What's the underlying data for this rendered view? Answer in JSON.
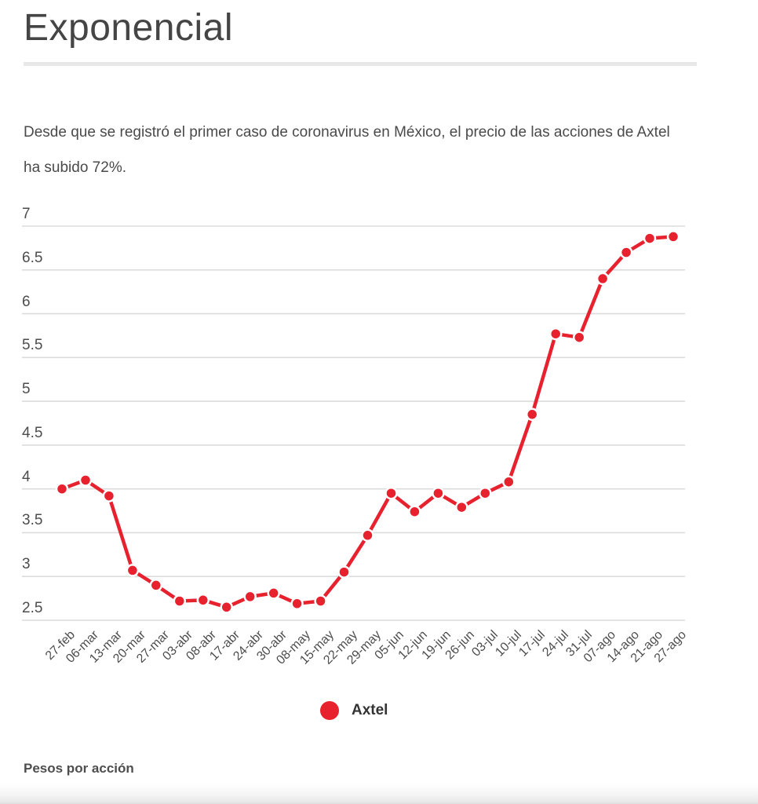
{
  "header": {
    "title": "Exponencial",
    "subtitle_lines": [
      "Desde que se registró el primer caso de coronavirus en México, el precio de las acciones de Axtel",
      "ha subido 72%."
    ]
  },
  "legend": {
    "label": "Axtel"
  },
  "footer": {
    "note": "Pesos por acción"
  },
  "colors": {
    "accent": "#e8212e",
    "grid": "#dcdcdc",
    "title_text": "#454545",
    "body_text": "#4a4a4a",
    "axis_text": "#4d4d4d"
  },
  "chart_data": {
    "type": "line",
    "title": "Exponencial",
    "subtitle": "Desde que se registró el primer caso de coronavirus en México, el precio de las acciones de Axtel ha subido 72%.",
    "ylabel": "Pesos por acción",
    "xlabel": "",
    "ylim": [
      2.5,
      7
    ],
    "ytick_step": 0.5,
    "y_ticks": [
      "7",
      "6.5",
      "6",
      "5.5",
      "5",
      "4.5",
      "4",
      "3.5",
      "3",
      "2.5"
    ],
    "grid": "horizontal",
    "legend_position": "bottom",
    "marker": "circle-with-white-halo",
    "line_color": "#e8212e",
    "categories": [
      "27-feb",
      "06-mar",
      "13-mar",
      "20-mar",
      "27-mar",
      "03-abr",
      "08-abr",
      "17-abr",
      "24-abr",
      "30-abr",
      "08-may",
      "15-may",
      "22-may",
      "29-may",
      "05-jun",
      "12-jun",
      "19-jun",
      "26-jun",
      "03-jul",
      "10-jul",
      "17-jul",
      "24-jul",
      "31-jul",
      "07-ago",
      "14-ago",
      "21-ago",
      "27-ago"
    ],
    "series": [
      {
        "name": "Axtel",
        "values": [
          4.0,
          4.1,
          3.92,
          3.07,
          2.9,
          2.72,
          2.73,
          2.65,
          2.77,
          2.81,
          2.69,
          2.72,
          3.05,
          3.47,
          3.95,
          3.74,
          3.95,
          3.79,
          3.95,
          4.08,
          4.85,
          5.77,
          5.73,
          6.4,
          6.7,
          6.86,
          6.88
        ]
      }
    ]
  }
}
